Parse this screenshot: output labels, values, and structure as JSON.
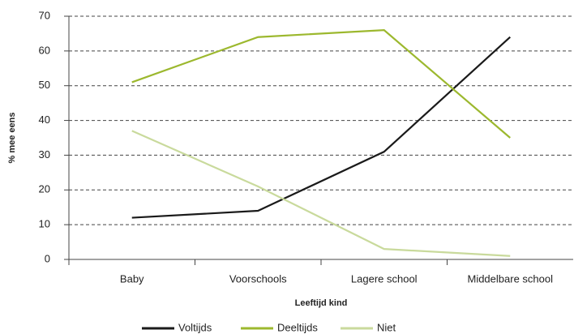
{
  "chart_data": {
    "type": "line",
    "categories": [
      "Baby",
      "Voorschools",
      "Lagere school",
      "Middelbare school"
    ],
    "series": [
      {
        "name": "Voltijds",
        "color": "#1a1a1a",
        "values": [
          12,
          14,
          31,
          64
        ]
      },
      {
        "name": "Deeltijds",
        "color": "#9cb82e",
        "values": [
          51,
          64,
          66,
          35
        ]
      },
      {
        "name": "Niet",
        "color": "#c9da9c",
        "values": [
          37,
          21,
          3,
          1
        ]
      }
    ],
    "ylim": [
      0,
      70
    ],
    "yticks": [
      0,
      10,
      20,
      30,
      40,
      50,
      60,
      70
    ],
    "y_label": "% mee eens",
    "x_label": "Leeftijd kind",
    "grid": true
  }
}
